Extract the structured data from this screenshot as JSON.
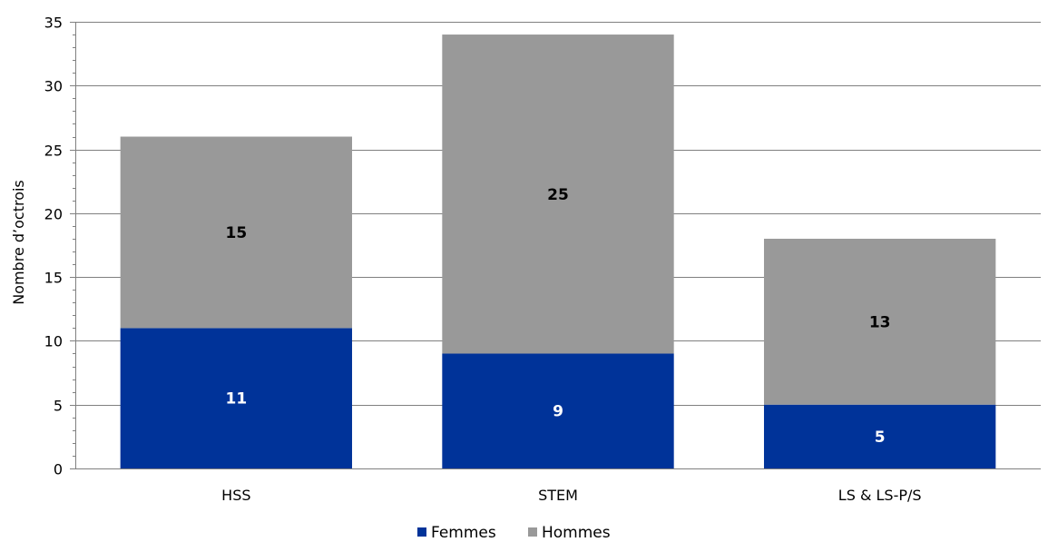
{
  "chart_data": {
    "type": "bar",
    "stacked": true,
    "title": "",
    "xlabel": "",
    "ylabel": "Nombre d’octrois",
    "categories": [
      "HSS",
      "STEM",
      "LS & LS-P/S"
    ],
    "series": [
      {
        "name": "Femmes",
        "values": [
          11,
          9,
          5
        ],
        "color": "#003399",
        "label_color": "#ffffff"
      },
      {
        "name": "Hommes",
        "values": [
          15,
          25,
          13
        ],
        "color": "#999999",
        "label_color": "#000000"
      }
    ],
    "ylim": [
      0,
      35
    ],
    "yticks": [
      "0",
      "5",
      "10",
      "15",
      "20",
      "25",
      "30",
      "35"
    ],
    "grid": true,
    "legend": "bottom",
    "gridline_color": "#808080",
    "axis_color": "#808080"
  }
}
